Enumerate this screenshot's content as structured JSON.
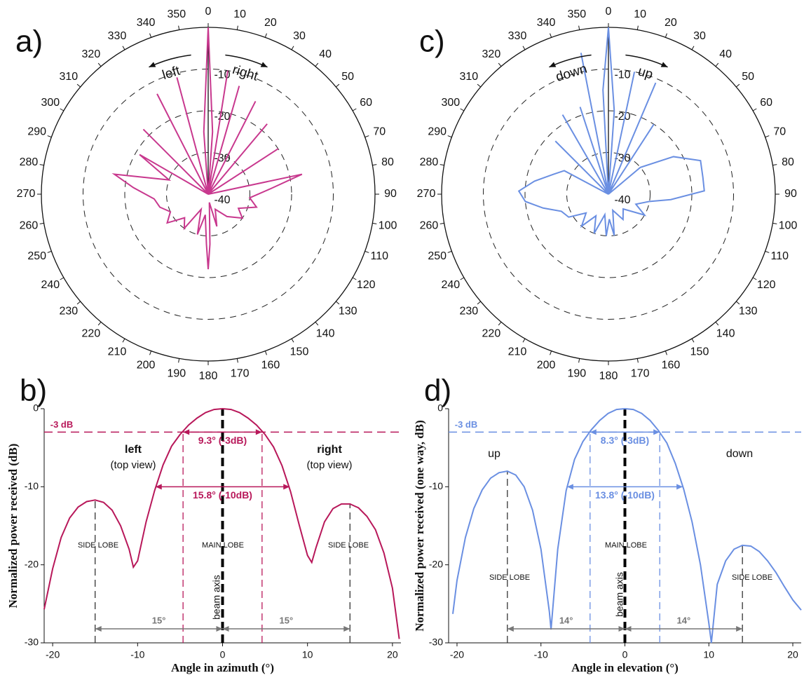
{
  "chart_data": [
    {
      "type": "polar",
      "label": "a)",
      "rlim": [
        -40,
        0
      ],
      "rticks": [
        -40,
        -30,
        -20,
        -10
      ],
      "thetaticks": [
        0,
        10,
        20,
        30,
        40,
        50,
        60,
        70,
        80,
        90,
        100,
        110,
        120,
        130,
        140,
        150,
        160,
        170,
        180,
        190,
        200,
        210,
        220,
        230,
        240,
        250,
        260,
        270,
        280,
        290,
        300,
        310,
        320,
        330,
        340,
        350
      ],
      "series": [
        {
          "color": "#c8388e",
          "theta": [
            0,
            4,
            6,
            9,
            12,
            16,
            20,
            27,
            32,
            40,
            48,
            57,
            62,
            78,
            85,
            95,
            105,
            115,
            125,
            140,
            155,
            165,
            172,
            178,
            180,
            182,
            188,
            195,
            205,
            215,
            225,
            235,
            245,
            255,
            265,
            275,
            282,
            290,
            300,
            305,
            315,
            325,
            333,
            340,
            345,
            352,
            356,
            360
          ],
          "values": [
            0,
            -25,
            -40,
            -10,
            -40,
            -13,
            -40,
            -15,
            -40,
            -18,
            -40,
            -20,
            -40,
            -17,
            -25,
            -30,
            -28,
            -32,
            -30,
            -33,
            -36,
            -32,
            -38,
            -28,
            -22,
            -28,
            -35,
            -30,
            -36,
            -30,
            -32,
            -28,
            -30,
            -28,
            -27,
            -22,
            -17,
            -30,
            -21,
            -40,
            -18,
            -40,
            -13,
            -40,
            -11,
            -40,
            -25,
            0
          ]
        }
      ],
      "annotations": [
        "left",
        "right"
      ]
    },
    {
      "type": "line",
      "label": "b)",
      "xlabel": "Angle in azimuth (°)",
      "ylabel": "Normalized power received (dB)",
      "xlim": [
        -21,
        21
      ],
      "ylim": [
        -30,
        0
      ],
      "xticks": [
        -20,
        -10,
        0,
        10,
        20
      ],
      "yticks": [
        0,
        -10,
        -20,
        -30
      ],
      "series": [
        {
          "color": "#b8185a",
          "x": [
            -21,
            -20,
            -19,
            -18,
            -17,
            -16,
            -15,
            -14,
            -13,
            -12,
            -11,
            -10.5,
            -10,
            -9,
            -8,
            -7,
            -6,
            -5,
            -4,
            -3,
            -2,
            -1,
            0,
            1,
            2,
            3,
            4,
            5,
            6,
            7,
            8,
            9,
            10,
            10.5,
            11,
            12,
            13,
            14,
            15,
            16,
            17,
            18,
            19,
            20,
            20.8
          ],
          "values": [
            -25.7,
            -20.5,
            -16.5,
            -14,
            -12.6,
            -11.9,
            -11.7,
            -12,
            -13,
            -15,
            -18,
            -20.3,
            -19.5,
            -14.5,
            -10.5,
            -7.2,
            -4.8,
            -3.3,
            -2.1,
            -1.2,
            -0.5,
            -0.1,
            0,
            -0.1,
            -0.5,
            -1.2,
            -2.1,
            -3.3,
            -4.9,
            -7.3,
            -10.6,
            -14.8,
            -18.8,
            -19.7,
            -17.8,
            -14.5,
            -12.8,
            -12.2,
            -12.2,
            -12.7,
            -13.8,
            -15.5,
            -18.5,
            -23,
            -29.5
          ]
        }
      ],
      "hline": {
        "value": -3,
        "label": "-3 dB"
      },
      "vlines": [
        -15,
        -4.65,
        0,
        4.65,
        15
      ],
      "spans": [
        {
          "from": -4.65,
          "to": 4.65,
          "at": -3,
          "label": "9.3° (-3dB)"
        },
        {
          "from": -7.9,
          "to": 7.9,
          "at": -10,
          "label": "15.8° (-10dB)"
        },
        {
          "from": -15,
          "to": 0,
          "at": -28.2,
          "label": "15°"
        },
        {
          "from": 0,
          "to": 15,
          "at": -28.2,
          "label": "15°"
        }
      ],
      "annotations": [
        "left",
        "(top view)",
        "right",
        "(top view)",
        "SIDE LOBE",
        "MAIN LOBE",
        "SIDE LOBE",
        "beam axis"
      ]
    },
    {
      "type": "polar",
      "label": "c)",
      "rlim": [
        -40,
        0
      ],
      "rticks": [
        -40,
        -30,
        -20,
        -10
      ],
      "thetaticks": [
        0,
        10,
        20,
        30,
        40,
        50,
        60,
        70,
        80,
        90,
        100,
        110,
        120,
        130,
        140,
        150,
        160,
        170,
        180,
        190,
        200,
        210,
        220,
        230,
        240,
        250,
        260,
        270,
        280,
        290,
        300,
        310,
        320,
        330,
        340,
        350
      ],
      "series": [
        {
          "color": "#6a8fe2",
          "theta": [
            0,
            4,
            7,
            12,
            17,
            23,
            28,
            33,
            40,
            50,
            60,
            70,
            80,
            88,
            95,
            100,
            110,
            120,
            135,
            150,
            165,
            172,
            178,
            183,
            190,
            200,
            210,
            220,
            230,
            240,
            250,
            258,
            265,
            272,
            280,
            290,
            298,
            305,
            315,
            322,
            330,
            336,
            342,
            346,
            349,
            353,
            357,
            360
          ],
          "values": [
            0,
            -20,
            -40,
            -10,
            -40,
            -11,
            -40,
            -20,
            -40,
            -30,
            -22,
            -16.5,
            -17,
            -17,
            -25,
            -30,
            -33,
            -30,
            -35,
            -33,
            -36,
            -30,
            -34,
            -30,
            -35,
            -30,
            -34,
            -30,
            -33,
            -29,
            -28,
            -24,
            -20,
            -18.5,
            -22,
            -26,
            -28,
            -40,
            -22,
            -40,
            -18,
            -40,
            -18,
            -40,
            -5.5,
            -40,
            -15,
            0
          ]
        }
      ],
      "annotations": [
        "down",
        "up"
      ]
    },
    {
      "type": "line",
      "label": "d)",
      "xlabel": "Angle in elevation (°)",
      "ylabel": "Normalized power received (one way, dB)",
      "xlim": [
        -21,
        21
      ],
      "ylim": [
        -30,
        0
      ],
      "xticks": [
        -20,
        -10,
        0,
        10,
        20
      ],
      "yticks": [
        0,
        -10,
        -20,
        -30
      ],
      "series": [
        {
          "color": "#6a8fe2",
          "x": [
            -20.5,
            -20,
            -19,
            -18,
            -17,
            -16,
            -15,
            -14,
            -13,
            -12,
            -11,
            -10,
            -9,
            -8.8,
            -8,
            -7,
            -6,
            -5,
            -4,
            -3,
            -2,
            -1,
            0,
            1,
            2,
            3,
            4,
            5,
            6,
            7,
            8,
            9,
            10,
            10.3,
            11,
            12,
            13,
            14,
            15,
            16,
            17,
            18,
            19,
            20,
            21
          ],
          "values": [
            -26.3,
            -22,
            -16.5,
            -12.8,
            -10.4,
            -8.9,
            -8.2,
            -8,
            -8.5,
            -10,
            -13,
            -18,
            -26,
            -28.3,
            -18,
            -10.5,
            -6.5,
            -4.2,
            -2.7,
            -1.5,
            -0.6,
            -0.1,
            0,
            -0.1,
            -0.6,
            -1.5,
            -2.8,
            -4.4,
            -7,
            -10.3,
            -14.5,
            -20,
            -27.5,
            -30,
            -22.5,
            -19.5,
            -18,
            -17.5,
            -17.6,
            -18.3,
            -19.5,
            -21,
            -22.8,
            -24.5,
            -25.8
          ]
        }
      ],
      "hline": {
        "value": -3,
        "label": "-3 dB"
      },
      "vlines": [
        -14,
        -4.15,
        0,
        4.15,
        14
      ],
      "spans": [
        {
          "from": -4.15,
          "to": 4.15,
          "at": -3,
          "label": "8.3° (-3dB)"
        },
        {
          "from": -6.9,
          "to": 6.9,
          "at": -10,
          "label": "13.8° (-10dB)"
        },
        {
          "from": -14,
          "to": 0,
          "at": -28.2,
          "label": "14°"
        },
        {
          "from": 0,
          "to": 14,
          "at": -28.2,
          "label": "14°"
        }
      ],
      "annotations": [
        "up",
        "down",
        "SIDE LOBE",
        "MAIN LOBE",
        "SIDE LOBE",
        "beam axis"
      ]
    }
  ]
}
